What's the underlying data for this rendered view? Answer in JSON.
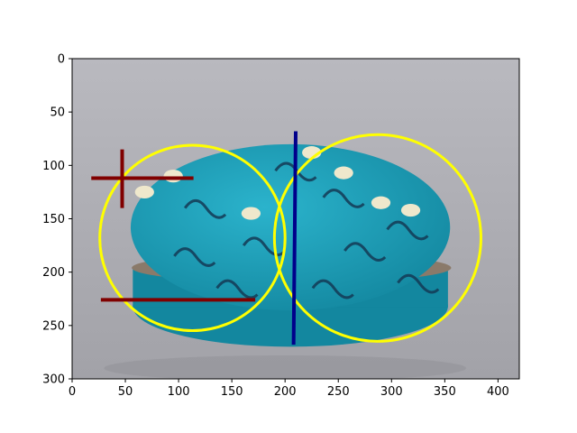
{
  "chart_data": {
    "type": "image-annotation",
    "title": "",
    "xlabel": "",
    "ylabel": "",
    "xlim": [
      0,
      420
    ],
    "ylim": [
      300,
      0
    ],
    "x_ticks": [
      0,
      50,
      100,
      150,
      200,
      250,
      300,
      350,
      400
    ],
    "y_ticks": [
      0,
      50,
      100,
      150,
      200,
      250,
      300
    ],
    "background_image": {
      "subject": "turquoise glazed lidded porcelain box with dark scrolling floral pattern on grey backdrop",
      "colors": {
        "backdrop_light": "#b9b9bf",
        "backdrop_dark": "#a2a2a8",
        "glaze": "#2bb3cc",
        "glaze_dark": "#13879f",
        "pattern": "#143a55",
        "blossom": "#efe8cc",
        "rim": "#8a7a6a"
      }
    },
    "circles": [
      {
        "cx": 113,
        "cy": 168,
        "r": 87,
        "color": "#ffff00"
      },
      {
        "cx": 287,
        "cy": 168,
        "r": 97,
        "color": "#ffff00"
      }
    ],
    "segments": [
      {
        "x1": 18,
        "y1": 112,
        "x2": 114,
        "y2": 112,
        "color": "#800000"
      },
      {
        "x1": 47,
        "y1": 85,
        "x2": 47,
        "y2": 140,
        "color": "#800000"
      },
      {
        "x1": 27,
        "y1": 226,
        "x2": 172,
        "y2": 226,
        "color": "#800000"
      },
      {
        "x1": 210,
        "y1": 68,
        "x2": 208,
        "y2": 268,
        "color": "#00008b"
      }
    ]
  }
}
